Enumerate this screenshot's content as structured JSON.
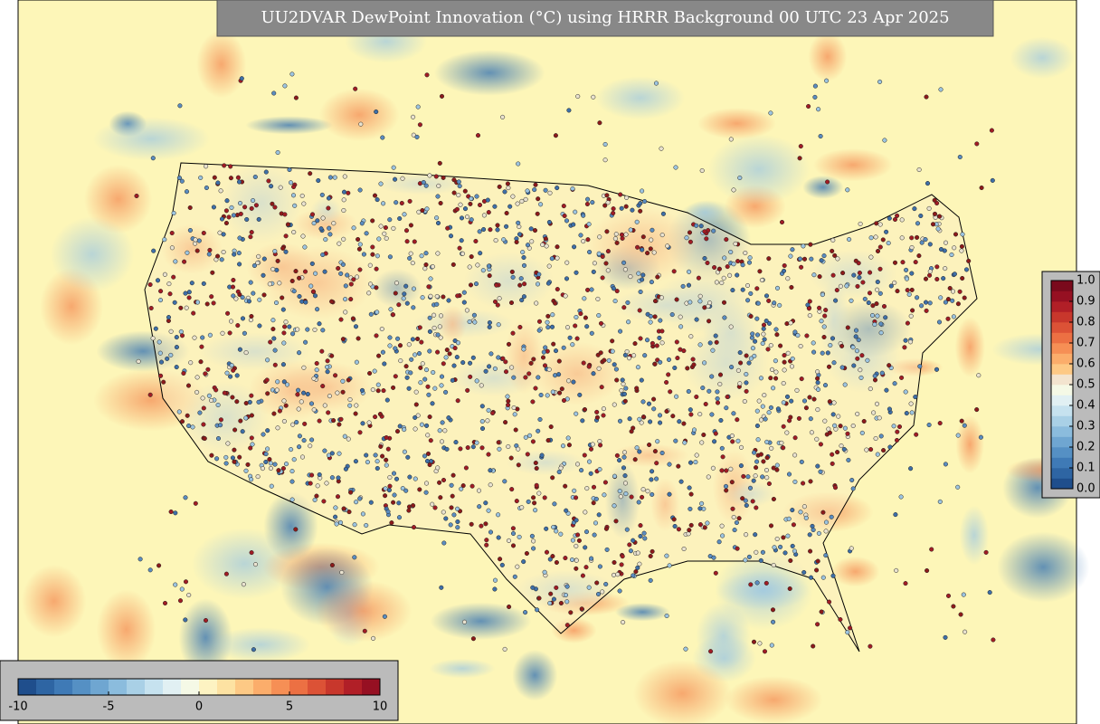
{
  "title": "UU2DVAR DewPoint Innovation (°C) using HRRR Background 00 UTC 23 Apr 2025",
  "colorbar_bottom": {
    "ticks": [
      -10,
      -5,
      0,
      5,
      10
    ],
    "lim": [
      -10,
      10
    ],
    "colors": [
      "#1f4e8c",
      "#2e65a3",
      "#3f7ab6",
      "#5590c4",
      "#6fa6d1",
      "#8bbcdd",
      "#a9d0e6",
      "#c6e2ef",
      "#e1f0f3",
      "#f5f9e6",
      "#fdf3c2",
      "#fde2a2",
      "#fdc985",
      "#fbad6b",
      "#f68f55",
      "#ec7043",
      "#dc5236",
      "#c8372c",
      "#b11f27",
      "#961022"
    ]
  },
  "colorbar_right": {
    "ticks": [
      {
        "value": 0,
        "label": "0.0"
      },
      {
        "value": 0.1,
        "label": "0.1"
      },
      {
        "value": 0.2,
        "label": "0.2"
      },
      {
        "value": 0.3,
        "label": "0.3"
      },
      {
        "value": 0.4,
        "label": "0.4"
      },
      {
        "value": 0.5,
        "label": "0.5"
      },
      {
        "value": 0.6,
        "label": "0.6"
      },
      {
        "value": 0.7,
        "label": "0.7"
      },
      {
        "value": 0.8,
        "label": "0.8"
      },
      {
        "value": 0.9,
        "label": "0.9"
      },
      {
        "value": 1,
        "label": "1.0"
      }
    ],
    "lim": [
      0,
      1
    ],
    "colors": [
      "#1f4e8c",
      "#2e65a3",
      "#3f7ab6",
      "#5590c4",
      "#6fa6d1",
      "#8bbcdd",
      "#a9d0e6",
      "#c6e2ef",
      "#e1f0f3",
      "#f5f9e6",
      "#f3e4cf",
      "#fdc985",
      "#fbad6b",
      "#f68f55",
      "#ec7043",
      "#dc5236",
      "#c8372c",
      "#b11f27",
      "#961022",
      "#7a0a1c"
    ]
  }
}
